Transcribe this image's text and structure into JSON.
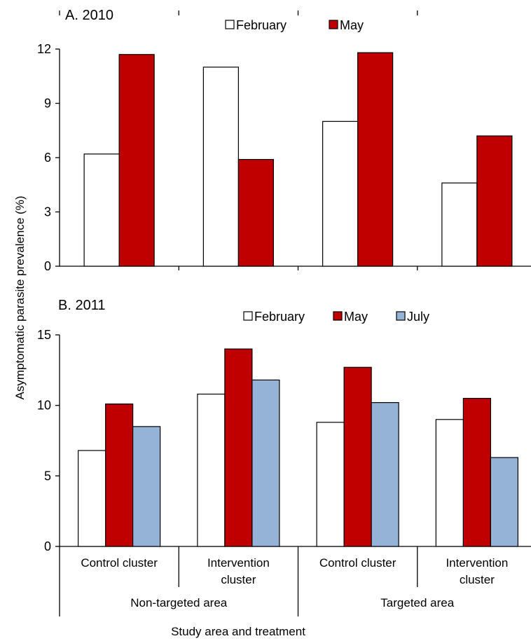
{
  "figure": {
    "ylabel": "Asymptomatic parasite prevalence (%)",
    "xlabel": "Study area and treatment",
    "categories": [
      "Control cluster",
      "Intervention cluster",
      "Control cluster",
      "Intervention cluster"
    ],
    "groups": [
      "Non-targeted area",
      "Targeted area"
    ]
  },
  "chart_data": [
    {
      "type": "bar",
      "title": "A. 2010",
      "categories": [
        "Control cluster",
        "Intervention cluster",
        "Control cluster",
        "Intervention cluster"
      ],
      "series": [
        {
          "name": "February",
          "color": "#ffffff",
          "values": [
            6.2,
            11.0,
            8.0,
            4.6
          ]
        },
        {
          "name": "May",
          "color": "#c00000",
          "values": [
            11.7,
            5.9,
            11.8,
            7.2
          ]
        }
      ],
      "ylim": [
        0,
        12
      ],
      "yticks": [
        0,
        3,
        6,
        9,
        12
      ],
      "legend": "top-center"
    },
    {
      "type": "bar",
      "title": "B. 2011",
      "categories": [
        "Control cluster",
        "Intervention cluster",
        "Control cluster",
        "Intervention cluster"
      ],
      "series": [
        {
          "name": "February",
          "color": "#ffffff",
          "values": [
            6.8,
            10.8,
            8.8,
            9.0
          ]
        },
        {
          "name": "May",
          "color": "#c00000",
          "values": [
            10.1,
            14.0,
            12.7,
            10.5
          ]
        },
        {
          "name": "July",
          "color": "#95b3d7",
          "values": [
            8.5,
            11.8,
            10.2,
            6.3
          ]
        }
      ],
      "ylim": [
        0,
        15
      ],
      "yticks": [
        0,
        5,
        10,
        15
      ],
      "legend": "top-center"
    }
  ]
}
